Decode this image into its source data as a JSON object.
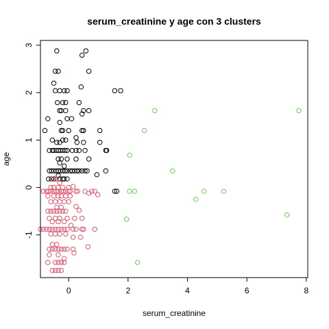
{
  "chart_data": {
    "type": "scatter",
    "title": "serum_creatinine  y  age con  3  clusters",
    "xlabel": "serum_creatinine",
    "ylabel": "age",
    "xlim": [
      -0.95,
      8.05
    ],
    "ylim": [
      -1.9,
      3.1
    ],
    "xticks": [
      0,
      2,
      4,
      6,
      8
    ],
    "yticks": [
      -1,
      0,
      1,
      2,
      3
    ],
    "grid": false,
    "series": [
      {
        "color": "#000000",
        "points": [
          [
            -0.4,
            2.88
          ],
          [
            0.45,
            2.79
          ],
          [
            0.58,
            2.88
          ],
          [
            -0.45,
            2.45
          ],
          [
            -0.35,
            2.45
          ],
          [
            0.68,
            2.45
          ],
          [
            -0.5,
            2.2
          ],
          [
            -0.45,
            2.04
          ],
          [
            -0.3,
            2.04
          ],
          [
            -0.15,
            2.04
          ],
          [
            -0.05,
            2.04
          ],
          [
            0.42,
            2.12
          ],
          [
            1.55,
            2.04
          ],
          [
            1.75,
            2.04
          ],
          [
            -0.38,
            1.79
          ],
          [
            -0.2,
            1.79
          ],
          [
            -0.1,
            1.79
          ],
          [
            0.35,
            1.79
          ],
          [
            -0.3,
            1.62
          ],
          [
            -0.25,
            1.62
          ],
          [
            -0.1,
            1.62
          ],
          [
            0.45,
            1.55
          ],
          [
            0.5,
            1.62
          ],
          [
            0.68,
            1.62
          ],
          [
            -0.05,
            1.45
          ],
          [
            0.1,
            1.45
          ],
          [
            -0.7,
            1.45
          ],
          [
            -0.3,
            1.37
          ],
          [
            -0.25,
            1.2
          ],
          [
            -0.2,
            1.2
          ],
          [
            0.0,
            1.2
          ],
          [
            0.45,
            1.2
          ],
          [
            0.5,
            1.2
          ],
          [
            1.05,
            1.2
          ],
          [
            -0.8,
            1.2
          ],
          [
            -0.55,
            1.0
          ],
          [
            -0.4,
            0.95
          ],
          [
            -0.3,
            0.95
          ],
          [
            -0.2,
            1.0
          ],
          [
            -0.1,
            1.0
          ],
          [
            0.25,
            1.05
          ],
          [
            0.28,
            0.95
          ],
          [
            0.5,
            0.95
          ],
          [
            1.05,
            0.95
          ],
          [
            -0.65,
            0.78
          ],
          [
            -0.55,
            0.78
          ],
          [
            -0.5,
            0.78
          ],
          [
            -0.42,
            0.78
          ],
          [
            -0.35,
            0.78
          ],
          [
            -0.28,
            0.78
          ],
          [
            -0.2,
            0.78
          ],
          [
            -0.12,
            0.78
          ],
          [
            -0.05,
            0.78
          ],
          [
            0.12,
            0.78
          ],
          [
            0.25,
            0.78
          ],
          [
            0.35,
            0.78
          ],
          [
            0.55,
            0.78
          ],
          [
            1.25,
            0.78
          ],
          [
            1.28,
            0.78
          ],
          [
            -0.35,
            0.6
          ],
          [
            -0.25,
            0.6
          ],
          [
            -0.05,
            0.6
          ],
          [
            0.25,
            0.6
          ],
          [
            0.68,
            0.6
          ],
          [
            -0.3,
            0.52
          ],
          [
            -0.15,
            0.45
          ],
          [
            -0.65,
            0.35
          ],
          [
            -0.58,
            0.35
          ],
          [
            -0.5,
            0.35
          ],
          [
            -0.42,
            0.35
          ],
          [
            -0.35,
            0.35
          ],
          [
            -0.28,
            0.35
          ],
          [
            -0.2,
            0.35
          ],
          [
            -0.12,
            0.35
          ],
          [
            -0.05,
            0.35
          ],
          [
            0.05,
            0.35
          ],
          [
            0.12,
            0.35
          ],
          [
            0.2,
            0.35
          ],
          [
            0.28,
            0.35
          ],
          [
            0.35,
            0.35
          ],
          [
            0.45,
            0.35
          ],
          [
            0.55,
            0.35
          ],
          [
            0.62,
            0.35
          ],
          [
            1.25,
            0.35
          ],
          [
            -0.35,
            0.25
          ],
          [
            -0.2,
            0.18
          ],
          [
            -0.68,
            0.18
          ],
          [
            -0.58,
            0.18
          ],
          [
            -0.5,
            0.18
          ],
          [
            -0.42,
            0.18
          ],
          [
            -0.3,
            0.18
          ],
          [
            -0.15,
            0.18
          ],
          [
            -0.05,
            0.18
          ],
          [
            0.95,
            0.27
          ],
          [
            1.55,
            -0.08
          ],
          [
            1.62,
            -0.08
          ]
        ]
      },
      {
        "color": "#DF536B",
        "points": [
          [
            -0.55,
            0.18
          ],
          [
            -0.42,
            0.18
          ],
          [
            -0.3,
            0.1
          ],
          [
            -0.6,
            0.0
          ],
          [
            -0.5,
            0.0
          ],
          [
            -0.35,
            0.0
          ],
          [
            -0.2,
            0.0
          ],
          [
            0.0,
            0.0
          ],
          [
            0.15,
            0.02
          ],
          [
            -0.85,
            -0.08
          ],
          [
            -0.75,
            -0.08
          ],
          [
            -0.68,
            -0.08
          ],
          [
            -0.6,
            -0.08
          ],
          [
            -0.5,
            -0.08
          ],
          [
            -0.42,
            -0.08
          ],
          [
            -0.35,
            -0.08
          ],
          [
            -0.25,
            -0.08
          ],
          [
            -0.18,
            -0.08
          ],
          [
            -0.1,
            -0.08
          ],
          [
            0.0,
            -0.08
          ],
          [
            0.05,
            -0.08
          ],
          [
            0.25,
            -0.08
          ],
          [
            0.3,
            -0.08
          ],
          [
            0.55,
            -0.08
          ],
          [
            0.78,
            -0.08
          ],
          [
            0.88,
            -0.08
          ],
          [
            -0.7,
            -0.18
          ],
          [
            -0.5,
            -0.18
          ],
          [
            -0.35,
            -0.18
          ],
          [
            -0.25,
            -0.18
          ],
          [
            -0.1,
            -0.18
          ],
          [
            0.05,
            -0.18
          ],
          [
            0.68,
            -0.12
          ],
          [
            0.98,
            -0.15
          ],
          [
            -0.6,
            -0.3
          ],
          [
            -0.45,
            -0.3
          ],
          [
            -0.3,
            -0.3
          ],
          [
            -0.15,
            -0.3
          ],
          [
            0.0,
            -0.3
          ],
          [
            -0.4,
            -0.42
          ],
          [
            -0.25,
            -0.42
          ],
          [
            0.25,
            -0.4
          ],
          [
            0.35,
            -0.48
          ],
          [
            -0.7,
            -0.5
          ],
          [
            -0.6,
            -0.5
          ],
          [
            -0.5,
            -0.5
          ],
          [
            -0.4,
            -0.5
          ],
          [
            -0.3,
            -0.5
          ],
          [
            -0.2,
            -0.5
          ],
          [
            -0.1,
            -0.5
          ],
          [
            -0.65,
            -0.65
          ],
          [
            -0.45,
            -0.65
          ],
          [
            -0.3,
            -0.65
          ],
          [
            -0.05,
            -0.65
          ],
          [
            0.2,
            -0.65
          ],
          [
            0.45,
            -0.65
          ],
          [
            -0.55,
            -0.72
          ],
          [
            -0.35,
            -0.72
          ],
          [
            -0.15,
            -0.72
          ],
          [
            0.08,
            -0.8
          ],
          [
            -0.95,
            -0.88
          ],
          [
            -0.85,
            -0.88
          ],
          [
            -0.75,
            -0.88
          ],
          [
            -0.65,
            -0.88
          ],
          [
            -0.55,
            -0.88
          ],
          [
            -0.45,
            -0.88
          ],
          [
            -0.35,
            -0.88
          ],
          [
            -0.25,
            -0.88
          ],
          [
            -0.15,
            -0.88
          ],
          [
            -0.05,
            -0.88
          ],
          [
            0.15,
            -0.88
          ],
          [
            0.25,
            -0.88
          ],
          [
            0.45,
            -0.88
          ],
          [
            0.5,
            -0.88
          ],
          [
            0.88,
            -0.88
          ],
          [
            -0.6,
            -0.98
          ],
          [
            -0.45,
            -0.98
          ],
          [
            -0.3,
            -0.98
          ],
          [
            -0.1,
            -0.98
          ],
          [
            0.4,
            -1.05
          ],
          [
            0.15,
            -1.05
          ],
          [
            -0.55,
            -1.2
          ],
          [
            -0.4,
            -1.2
          ],
          [
            0.65,
            -1.25
          ],
          [
            -0.65,
            -1.3
          ],
          [
            -0.55,
            -1.3
          ],
          [
            -0.45,
            -1.3
          ],
          [
            -0.35,
            -1.3
          ],
          [
            -0.25,
            -1.3
          ],
          [
            -0.15,
            -1.3
          ],
          [
            -0.05,
            -1.3
          ],
          [
            0.15,
            -1.3
          ],
          [
            0.18,
            -1.38
          ],
          [
            -0.65,
            -1.42
          ],
          [
            -0.35,
            -1.42
          ],
          [
            -0.15,
            -1.5
          ],
          [
            -0.7,
            -1.58
          ],
          [
            -0.45,
            -1.58
          ],
          [
            -0.35,
            -1.58
          ],
          [
            -0.25,
            -1.58
          ],
          [
            -0.15,
            -1.58
          ],
          [
            -0.55,
            -1.75
          ],
          [
            -0.45,
            -1.75
          ],
          [
            -0.35,
            -1.75
          ],
          [
            -0.25,
            -1.75
          ]
        ]
      },
      {
        "color": "#61D04F",
        "points": [
          [
            2.9,
            1.62
          ],
          [
            7.75,
            1.62
          ],
          [
            2.55,
            1.2
          ],
          [
            2.05,
            0.68
          ],
          [
            3.5,
            0.35
          ],
          [
            2.05,
            -0.08
          ],
          [
            2.22,
            -0.08
          ],
          [
            4.55,
            -0.08
          ],
          [
            5.22,
            -0.08
          ],
          [
            4.28,
            -0.25
          ],
          [
            7.35,
            -0.58
          ],
          [
            1.95,
            -0.67
          ],
          [
            2.32,
            -1.58
          ]
        ]
      }
    ]
  }
}
